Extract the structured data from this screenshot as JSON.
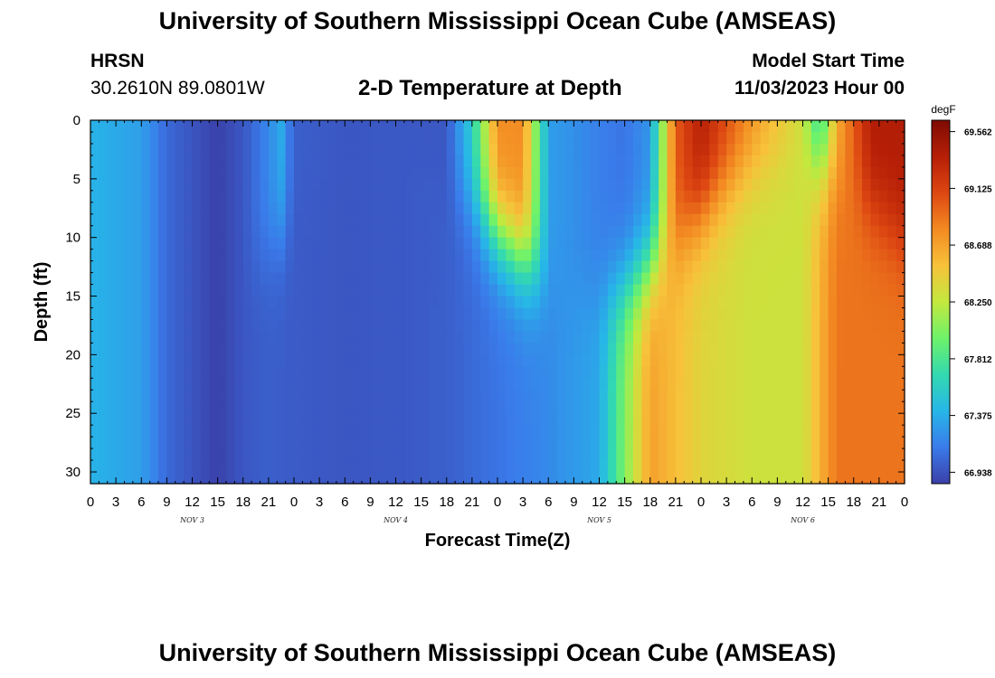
{
  "header": {
    "main_title": "University of Southern Mississippi Ocean Cube (AMSEAS)",
    "station_name": "HRSN",
    "station_coords": "30.2610N  89.0801W",
    "plot_title": "2-D Temperature at Depth",
    "model_start_label": "Model Start Time",
    "model_start_value": "11/03/2023 Hour 00"
  },
  "footer": {
    "title": "University of Southern Mississippi Ocean Cube (AMSEAS)"
  },
  "colors": {
    "colorbar_stops": [
      "#3b3fa8",
      "#3a7bea",
      "#27b6e8",
      "#33d9b0",
      "#6ef26a",
      "#c3e83e",
      "#f7c23a",
      "#f38a22",
      "#dd4712",
      "#b61f06",
      "#7e0b03"
    ]
  },
  "chart_data": {
    "type": "heatmap",
    "title": "2-D Temperature at Depth",
    "xlabel": "Forecast Time(Z)",
    "ylabel": "Depth (ft)",
    "x_tick_labels": [
      "0",
      "3",
      "6",
      "9",
      "12",
      "15",
      "18",
      "21",
      "0",
      "3",
      "6",
      "9",
      "12",
      "15",
      "18",
      "21",
      "0",
      "3",
      "6",
      "9",
      "12",
      "15",
      "18",
      "21",
      "0",
      "3",
      "6",
      "9",
      "12",
      "15",
      "18",
      "21",
      "0"
    ],
    "date_labels": [
      {
        "label": "NOV 3",
        "hour": 12
      },
      {
        "label": "NOV 4",
        "hour": 36
      },
      {
        "label": "NOV 5",
        "hour": 60
      },
      {
        "label": "NOV 6",
        "hour": 84
      }
    ],
    "x_range_hours": [
      0,
      96
    ],
    "y_ticks": [
      0,
      5,
      10,
      15,
      20,
      25,
      30
    ],
    "y_range_ft": [
      0,
      31
    ],
    "y_inverted": true,
    "colorbar": {
      "unit": "degF",
      "labels": [
        "69.562",
        "69.125",
        "68.688",
        "68.250",
        "67.812",
        "67.375",
        "66.938"
      ],
      "range": [
        66.85,
        69.65
      ]
    },
    "field_description": {
      "surface_temp_by_hour": [
        [
          0,
          67.4
        ],
        [
          6,
          67.3
        ],
        [
          9,
          67.05
        ],
        [
          12,
          66.95
        ],
        [
          15,
          66.86
        ],
        [
          18,
          66.96
        ],
        [
          21,
          67.2
        ],
        [
          22.5,
          67.35
        ],
        [
          24,
          67.0
        ],
        [
          30,
          66.96
        ],
        [
          36,
          66.97
        ],
        [
          40,
          66.96
        ],
        [
          42,
          66.96
        ],
        [
          45,
          67.6
        ],
        [
          48,
          68.8
        ],
        [
          51,
          68.8
        ],
        [
          54,
          67.3
        ],
        [
          60,
          67.15
        ],
        [
          63,
          67.1
        ],
        [
          66,
          67.25
        ],
        [
          69,
          69.0
        ],
        [
          72,
          69.4
        ],
        [
          78,
          68.8
        ],
        [
          84,
          68.3
        ],
        [
          86,
          67.55
        ],
        [
          88,
          68.6
        ],
        [
          92,
          69.4
        ],
        [
          96,
          69.4
        ]
      ],
      "deep_temp_by_hour": [
        [
          0,
          67.4
        ],
        [
          6,
          67.3
        ],
        [
          9,
          67.05
        ],
        [
          12,
          66.95
        ],
        [
          15,
          66.86
        ],
        [
          18,
          66.96
        ],
        [
          21,
          67.0
        ],
        [
          24,
          66.98
        ],
        [
          30,
          66.96
        ],
        [
          36,
          66.97
        ],
        [
          42,
          67.0
        ],
        [
          48,
          67.1
        ],
        [
          54,
          67.2
        ],
        [
          60,
          67.35
        ],
        [
          66,
          68.7
        ],
        [
          72,
          68.4
        ],
        [
          78,
          68.3
        ],
        [
          84,
          68.3
        ],
        [
          88,
          68.9
        ],
        [
          96,
          68.9
        ]
      ]
    }
  }
}
